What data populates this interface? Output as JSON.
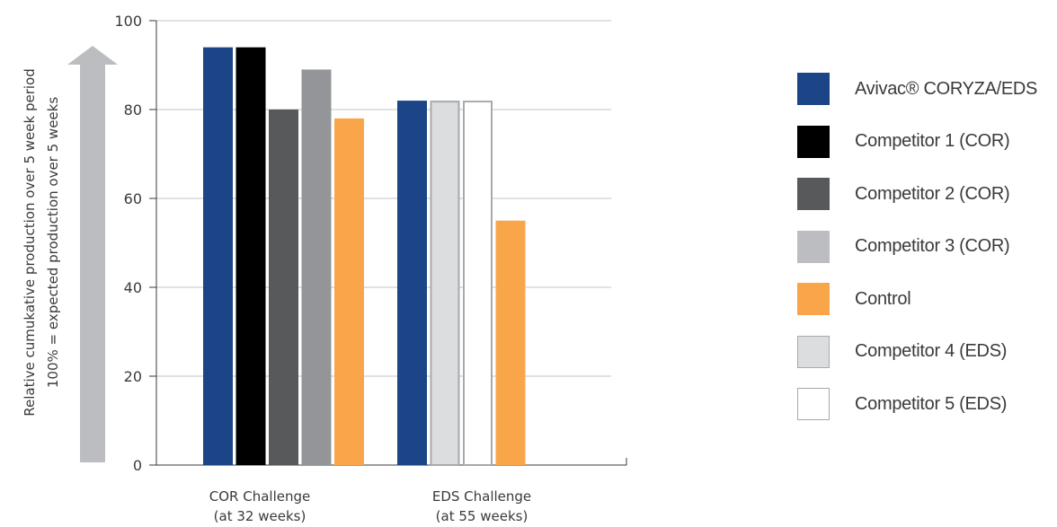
{
  "chart_data": {
    "type": "bar",
    "ylabel_lines": [
      "Relative cumukative production over 5 week period",
      "100% = expected production over 5 weeks"
    ],
    "ylim": [
      0,
      100
    ],
    "yticks": [
      0,
      20,
      40,
      60,
      80,
      100
    ],
    "grid": true,
    "legend_position": "right",
    "groups": [
      {
        "label_lines": [
          "COR Challenge",
          "(at 32 weeks)"
        ],
        "bars": [
          {
            "series": "Avivac® CORYZA/EDS",
            "value": 94
          },
          {
            "series": "Competitor 1 (COR)",
            "value": 94
          },
          {
            "series": "Competitor 2 (COR)",
            "value": 80
          },
          {
            "series": "Competitor 3 (COR)",
            "value": 89
          },
          {
            "series": "Control",
            "value": 78
          }
        ]
      },
      {
        "label_lines": [
          "EDS Challenge",
          "(at 55 weeks)"
        ],
        "bars": [
          {
            "series": "Avivac® CORYZA/EDS",
            "value": 82
          },
          {
            "series": "Competitor 4 (EDS)",
            "value": 82
          },
          {
            "series": "Competitor 5 (EDS)",
            "value": 82
          },
          {
            "series": "Control",
            "value": 55
          }
        ]
      }
    ],
    "series": [
      {
        "name": "Avivac® CORYZA/EDS",
        "color": "#1c4587",
        "border": "#1c4587"
      },
      {
        "name": "Competitor 1 (COR)",
        "color": "#000000",
        "border": "#000000"
      },
      {
        "name": "Competitor 2 (COR)",
        "color": "#58595b",
        "border": "#58595b"
      },
      {
        "name": "Competitor 3 (COR)",
        "color": "#bcbdc0",
        "border": "#bcbdc0"
      },
      {
        "name": "Control",
        "color": "#f9a64a",
        "border": "#f9a64a"
      },
      {
        "name": "Competitor 4 (EDS)",
        "color": "#dcddde",
        "border": "#a7a9ac"
      },
      {
        "name": "Competitor 5 (EDS)",
        "color": "#ffffff",
        "border": "#a7a9ac"
      }
    ],
    "bar_color_overrides": {
      "Competitor 3 (COR)": {
        "0": "#939598"
      }
    },
    "arrow_color": "#bcbdc0"
  }
}
